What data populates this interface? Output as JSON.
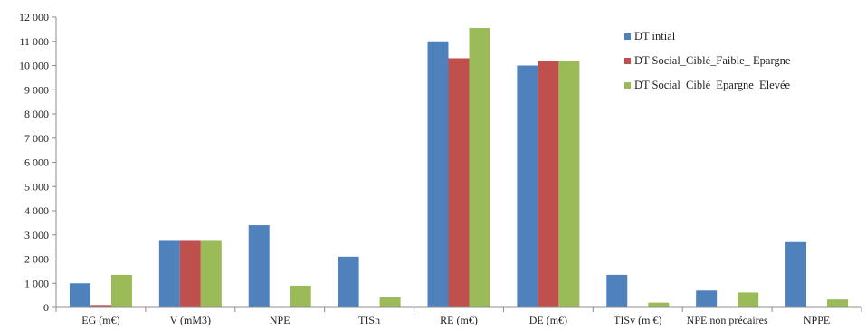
{
  "chart_data": {
    "type": "bar",
    "title": "",
    "xlabel": "",
    "ylabel": "",
    "ylim": [
      0,
      12000
    ],
    "yticks": [
      0,
      1000,
      2000,
      3000,
      4000,
      5000,
      6000,
      7000,
      8000,
      9000,
      10000,
      11000,
      12000
    ],
    "ytick_labels": [
      "0",
      "1 000",
      "2 000",
      "3 000",
      "4 000",
      "5 000",
      "6 000",
      "7 000",
      "8 000",
      "9 000",
      "10 000",
      "11 000",
      "12 000"
    ],
    "grid": false,
    "legend_position": "top-right",
    "categories": [
      "EG (m€)",
      "V (mM3)",
      "NPE",
      "TISn",
      "RE (m€)",
      "DE (m€)",
      "TISv (m €)",
      "NPE non précaires",
      "NPPE"
    ],
    "series": [
      {
        "name": "DT intial",
        "color": "#4f81bd",
        "values": [
          1000,
          2750,
          3400,
          2100,
          11000,
          10000,
          1350,
          700,
          2700
        ]
      },
      {
        "name": "DT Social_Ciblé_Faible_ Epargne",
        "color": "#c0504d",
        "values": [
          100,
          2750,
          0,
          0,
          10300,
          10200,
          0,
          0,
          0
        ]
      },
      {
        "name": "DT Social_Ciblé_Epargne_Elevée",
        "color": "#9bbb59",
        "values": [
          1350,
          2750,
          900,
          430,
          11550,
          10200,
          200,
          620,
          330
        ]
      }
    ]
  }
}
